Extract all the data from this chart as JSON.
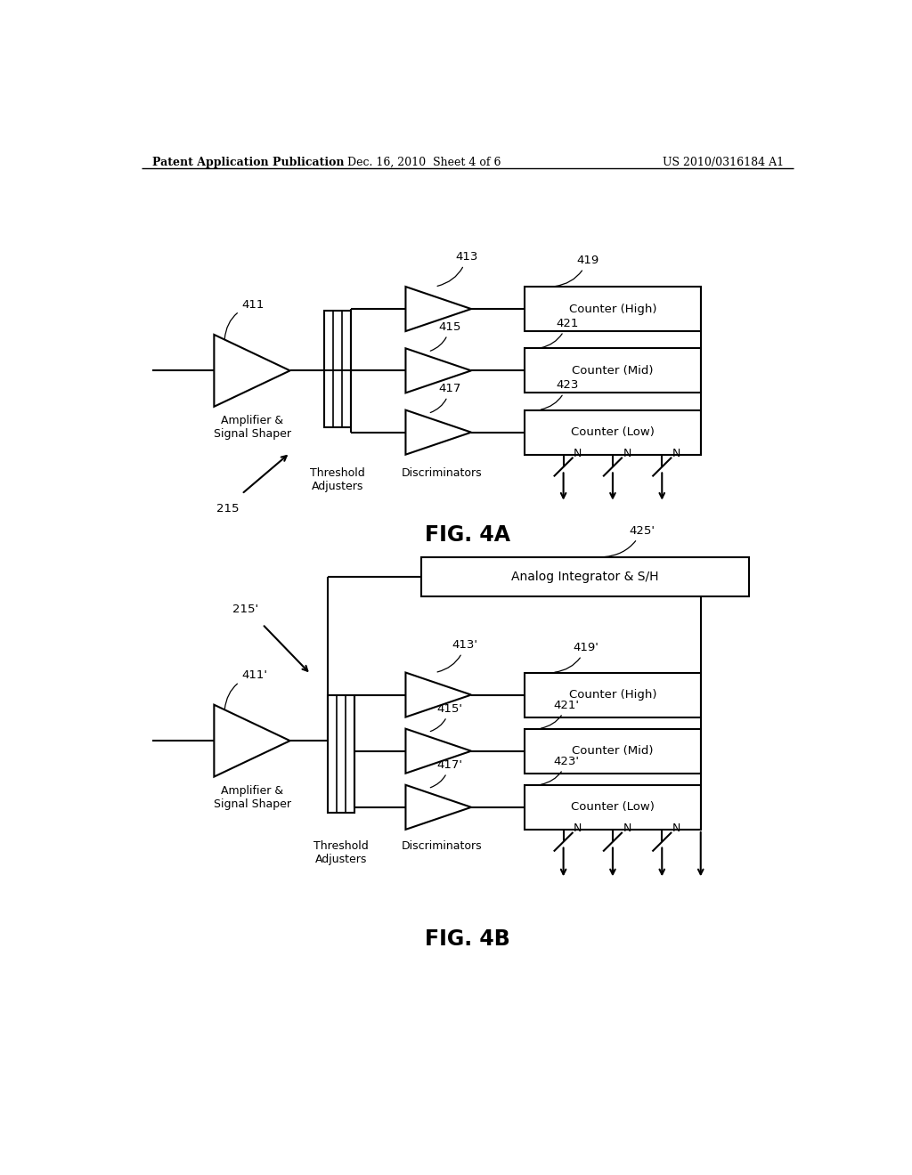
{
  "header_left": "Patent Application Publication",
  "header_mid": "Dec. 16, 2010  Sheet 4 of 6",
  "header_right": "US 2010/0316184 A1",
  "fig4a_label": "FIG. 4A",
  "fig4b_label": "FIG. 4B",
  "background": "#ffffff",
  "fig4a": {
    "amp_label": "Amplifier &\nSignal Shaper",
    "amp_ref": "411",
    "disc_label": "Discriminators",
    "thresh_label": "Threshold\nAdjusters",
    "sys_ref": "215",
    "discriminators": [
      {
        "ref": "413",
        "label": "Counter (High)",
        "counter_ref": "419"
      },
      {
        "ref": "415",
        "label": "Counter (Mid)",
        "counter_ref": "421"
      },
      {
        "ref": "417",
        "label": "Counter (Low)",
        "counter_ref": "423"
      }
    ]
  },
  "fig4b": {
    "amp_label": "Amplifier &\nSignal Shaper",
    "amp_ref": "411'",
    "disc_label": "Discriminators",
    "thresh_label": "Threshold\nAdjusters",
    "sys_ref": "215'",
    "integrator_label": "Analog Integrator & S/H",
    "integrator_ref": "425'",
    "discriminators": [
      {
        "ref": "413'",
        "label": "Counter (High)",
        "counter_ref": "419'"
      },
      {
        "ref": "415'",
        "label": "Counter (Mid)",
        "counter_ref": "421'"
      },
      {
        "ref": "417'",
        "label": "Counter (Low)",
        "counter_ref": "423'"
      }
    ]
  }
}
